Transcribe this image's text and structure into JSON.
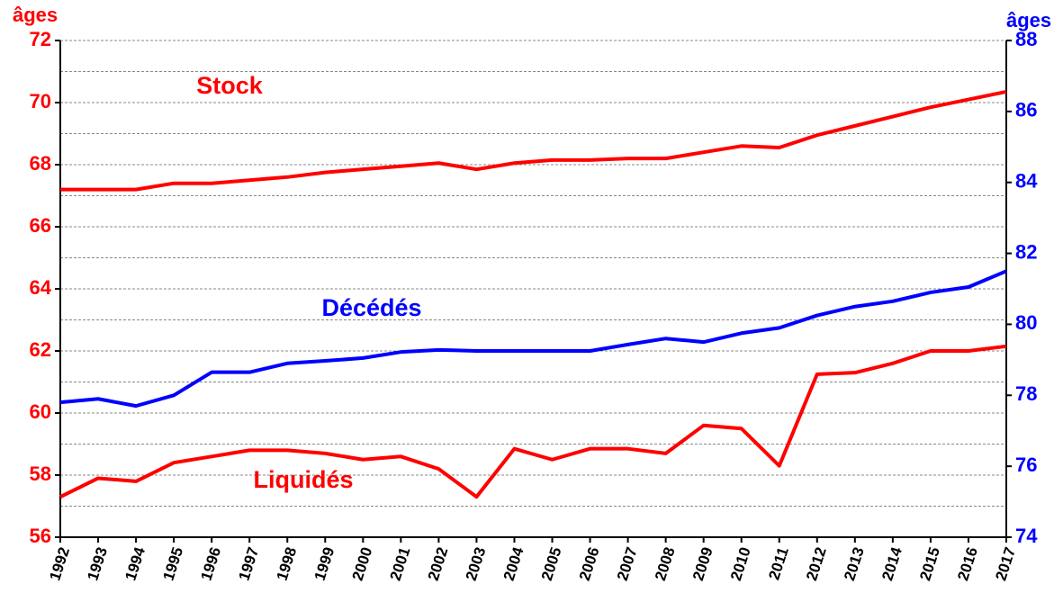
{
  "chart_data": {
    "type": "line",
    "ylabel": "âges",
    "y2label": "âges",
    "categories": [
      "1992",
      "1993",
      "1994",
      "1995",
      "1996",
      "1997",
      "1998",
      "1999",
      "2000",
      "2001",
      "2002",
      "2003",
      "2004",
      "2005",
      "2006",
      "2007",
      "2008",
      "2009",
      "2010",
      "2011",
      "2012",
      "2013",
      "2014",
      "2015",
      "2016",
      "2017"
    ],
    "series": [
      {
        "name": "Stock",
        "color": "#ff0000",
        "axis": "y",
        "values": [
          67.2,
          67.2,
          67.2,
          67.4,
          67.4,
          67.5,
          67.6,
          67.75,
          67.85,
          67.95,
          68.05,
          67.85,
          68.05,
          68.15,
          68.15,
          68.2,
          68.2,
          68.4,
          68.6,
          68.55,
          68.95,
          69.25,
          69.55,
          69.85,
          70.1,
          70.35
        ]
      },
      {
        "name": "Décédés",
        "color": "#0000ff",
        "axis": "y2",
        "values": [
          77.8,
          77.9,
          77.7,
          78.0,
          78.65,
          78.65,
          78.9,
          78.97,
          79.05,
          79.22,
          79.28,
          79.25,
          79.25,
          79.25,
          79.25,
          79.43,
          79.6,
          79.5,
          79.75,
          79.9,
          80.25,
          80.5,
          80.65,
          80.9,
          81.05,
          81.5
        ]
      },
      {
        "name": "Liquidés",
        "color": "#ff0000",
        "axis": "y",
        "values": [
          57.3,
          57.9,
          57.8,
          58.4,
          58.6,
          58.8,
          58.8,
          58.7,
          58.5,
          58.6,
          58.2,
          57.3,
          58.85,
          58.5,
          58.85,
          58.85,
          58.7,
          59.6,
          59.5,
          58.3,
          61.25,
          61.3,
          61.6,
          62.0,
          62.0,
          62.15
        ]
      }
    ],
    "ylim": [
      56,
      72
    ],
    "yticks": [
      56,
      58,
      60,
      62,
      64,
      66,
      68,
      70,
      72
    ],
    "minor_yticks": [
      57,
      59,
      61,
      63,
      65,
      67,
      69,
      71
    ],
    "y2lim": [
      74,
      88
    ],
    "y2ticks": [
      74,
      76,
      78,
      80,
      82,
      84,
      86,
      88
    ],
    "grid": true,
    "ycolor": "#ff0000",
    "y2color": "#0000ff"
  }
}
